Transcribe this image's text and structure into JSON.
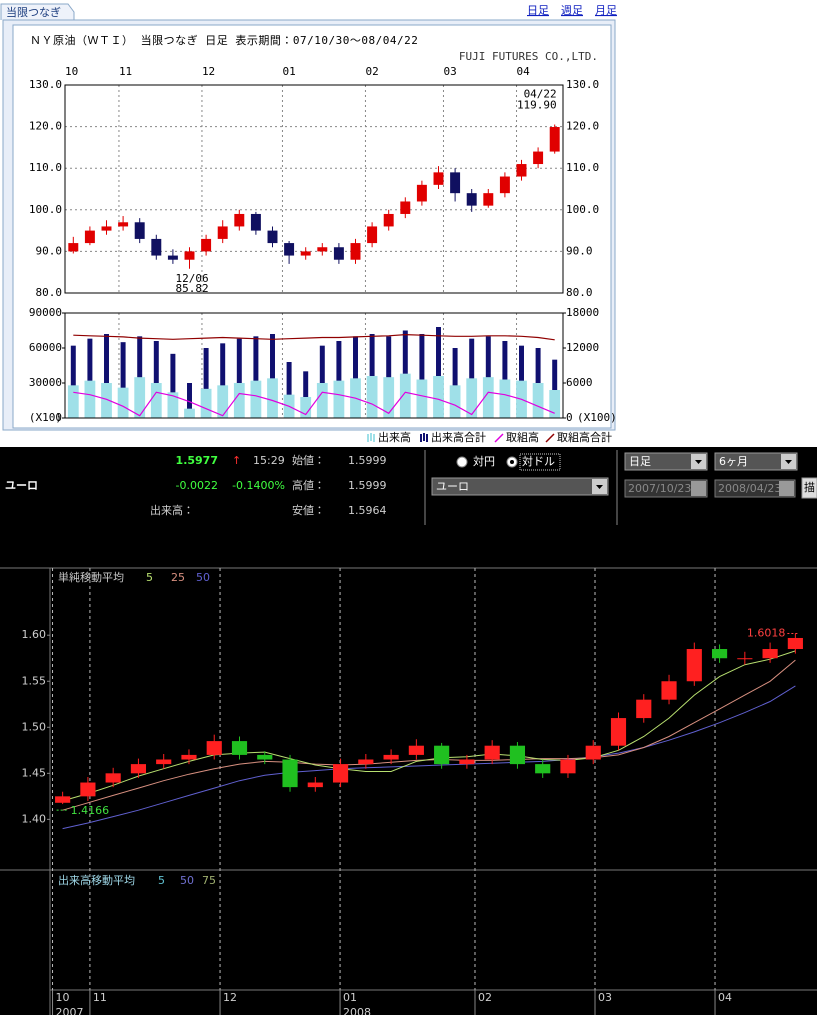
{
  "ui": {
    "tab": "当限つなぎ",
    "links": [
      "日足",
      "週足",
      "月足"
    ],
    "quote": {
      "name": "ユーロ",
      "price": "1.5977",
      "arrow": "↑",
      "time": "15:29",
      "change": "-0.0022",
      "change_pct": "-0.1400%",
      "volume_label": "出来高：",
      "open_label": "始値：",
      "open": "1.5999",
      "high_label": "高値：",
      "high": "1.5999",
      "low_label": "安値：",
      "low": "1.5964"
    },
    "controls": {
      "radios": [
        "対円",
        "対ドル"
      ],
      "currency": "ユーロ",
      "period": "日足",
      "range": "6ヶ月",
      "from": "2007/10/23",
      "to": "2008/04/23",
      "button": "描"
    }
  },
  "chart_data": [
    {
      "type": "candlestick",
      "title": "ＮＹ原油（ＷＴＩ） 当限つなぎ 日足 表示期間：07/10/30〜08/04/22",
      "subtitle": "FUJI FUTURES CO.,LTD.",
      "up_color": "#e00000",
      "down_color": "#101060",
      "xlim": [
        -0.5,
        29.5
      ],
      "xticks": [
        {
          "value": -0.5,
          "label": "10"
        },
        {
          "value": 2.75,
          "label": "11"
        },
        {
          "value": 7.75,
          "label": "12"
        },
        {
          "value": 12.6,
          "label": "01"
        },
        {
          "value": 17.6,
          "label": "02"
        },
        {
          "value": 22.3,
          "label": "03"
        },
        {
          "value": 26.7,
          "label": "04"
        }
      ],
      "ylim": [
        80,
        130
      ],
      "yticks": [
        {
          "value": 80,
          "label": "80.0"
        },
        {
          "value": 90,
          "label": "90.0"
        },
        {
          "value": 100,
          "label": "100.0"
        },
        {
          "value": 110,
          "label": "110.0"
        },
        {
          "value": 120,
          "label": "120.0"
        },
        {
          "value": 130,
          "label": "130.0"
        }
      ],
      "grid": true,
      "open": [
        90,
        92,
        95,
        96,
        97,
        93,
        89,
        88,
        90,
        93,
        96,
        99,
        95,
        92,
        89,
        90,
        91,
        88,
        92,
        96,
        99,
        102,
        106,
        109,
        104,
        101,
        104,
        108,
        111,
        114
      ],
      "high": [
        93.5,
        96,
        97.5,
        98.5,
        98,
        94,
        90.5,
        91,
        94,
        97.5,
        100,
        99.5,
        96,
        92.5,
        91,
        92,
        92,
        93,
        97,
        100,
        103,
        107,
        110.5,
        110,
        105,
        105,
        109,
        112,
        115,
        120.5
      ],
      "low": [
        89.5,
        91.5,
        94,
        95,
        92,
        88,
        87,
        85.82,
        89,
        92,
        95,
        94,
        91,
        87,
        88,
        89,
        87,
        87,
        91,
        95,
        98,
        101,
        105,
        102,
        99.5,
        100.5,
        103,
        107,
        110,
        113.5
      ],
      "close": [
        92,
        95,
        96,
        97,
        93,
        89,
        88,
        90,
        93,
        96,
        99,
        95,
        92,
        89,
        90,
        91,
        88,
        92,
        96,
        99,
        102,
        106,
        109,
        104,
        101,
        104,
        108,
        111,
        114,
        119.9
      ],
      "annotations": [
        {
          "date": "04/22",
          "price": "119.90"
        },
        {
          "date": "12/06",
          "price": "85.82"
        }
      ]
    },
    {
      "type": "volume",
      "xlim": [
        -0.5,
        29.5
      ],
      "xticks": [
        {
          "value": 2.75,
          "label": "11"
        },
        {
          "value": 7.75,
          "label": "12"
        },
        {
          "value": 12.6,
          "label": "01"
        },
        {
          "value": 17.6,
          "label": "02"
        },
        {
          "value": 22.3,
          "label": "03"
        },
        {
          "value": 26.7,
          "label": "04"
        }
      ],
      "ylim": [
        0,
        90000
      ],
      "yticks": [
        0,
        30000,
        60000,
        90000
      ],
      "y_unit": "(X10)",
      "y2lim": [
        0,
        18000
      ],
      "y2ticks": [
        0,
        6000,
        12000,
        18000
      ],
      "y2_unit": "(X100)",
      "series": [
        {
          "name": "出来高合計",
          "kind": "bar",
          "color": "#101070",
          "values": [
            62000,
            68000,
            72000,
            65000,
            70000,
            66000,
            55000,
            30000,
            60000,
            64000,
            68000,
            70000,
            72000,
            48000,
            40000,
            62000,
            66000,
            70000,
            72000,
            70000,
            75000,
            72000,
            78000,
            60000,
            68000,
            70000,
            66000,
            62000,
            60000,
            50000
          ]
        },
        {
          "name": "出来高",
          "kind": "bar",
          "color": "#9fe0e8",
          "values": [
            28000,
            32000,
            30000,
            26000,
            35000,
            30000,
            22000,
            8000,
            25000,
            28000,
            30000,
            32000,
            34000,
            20000,
            18000,
            30000,
            32000,
            34000,
            36000,
            35000,
            38000,
            33000,
            36000,
            28000,
            34000,
            35000,
            33000,
            32000,
            30000,
            24000
          ]
        },
        {
          "name": "取組高",
          "kind": "line",
          "color": "#e000e0",
          "values": [
            22000,
            20000,
            16000,
            10000,
            2000,
            22000,
            19000,
            14000,
            8000,
            2000,
            21000,
            19000,
            15000,
            10000,
            3000,
            22000,
            20000,
            17000,
            12000,
            4000,
            22000,
            19000,
            16000,
            11000,
            3000,
            22000,
            20000,
            16000,
            10000,
            4000
          ]
        },
        {
          "name": "取組高合計",
          "kind": "line",
          "axis": "y2",
          "color": "#900000",
          "values": [
            14200,
            14100,
            14000,
            13900,
            13700,
            13600,
            13500,
            13600,
            13700,
            13800,
            13700,
            13600,
            13500,
            13600,
            13700,
            13800,
            13800,
            13900,
            14000,
            14100,
            14300,
            14200,
            14100,
            14000,
            14000,
            14100,
            14100,
            14000,
            13800,
            13400
          ]
        }
      ],
      "legend": "bottom-right"
    },
    {
      "type": "candlestick",
      "up_color": "#ff2020",
      "down_color": "#20c020",
      "xlim": [
        -0.5,
        29.5
      ],
      "xticks": [
        {
          "value": -0.4,
          "label": "10"
        },
        {
          "value": 1.08,
          "label": "11"
        },
        {
          "value": 6.23,
          "label": "12"
        },
        {
          "value": 10.98,
          "label": "01"
        },
        {
          "value": 16.32,
          "label": "02"
        },
        {
          "value": 21.07,
          "label": "03"
        },
        {
          "value": 25.82,
          "label": "04"
        }
      ],
      "years": [
        {
          "value": -0.4,
          "label": "2007"
        },
        {
          "value": 10.98,
          "label": "2008"
        }
      ],
      "ylim": [
        1.345,
        1.673
      ],
      "yticks": [
        {
          "value": 1.4,
          "label": "1.40"
        },
        1.45,
        {
          "value": 1.5,
          "label": "1.50"
        },
        1.55,
        {
          "value": 1.6,
          "label": "1.60"
        }
      ],
      "open": [
        1.418,
        1.425,
        1.44,
        1.45,
        1.46,
        1.465,
        1.47,
        1.485,
        1.47,
        1.465,
        1.435,
        1.44,
        1.46,
        1.465,
        1.47,
        1.48,
        1.46,
        1.465,
        1.48,
        1.46,
        1.45,
        1.465,
        1.48,
        1.51,
        1.53,
        1.55,
        1.585,
        1.575,
        1.575,
        1.585
      ],
      "high": [
        1.43,
        1.446,
        1.456,
        1.466,
        1.471,
        1.476,
        1.492,
        1.49,
        1.474,
        1.47,
        1.446,
        1.466,
        1.471,
        1.476,
        1.487,
        1.483,
        1.47,
        1.486,
        1.484,
        1.465,
        1.47,
        1.486,
        1.516,
        1.536,
        1.557,
        1.592,
        1.59,
        1.582,
        1.592,
        1.6018
      ],
      "low": [
        1.4166,
        1.42,
        1.435,
        1.445,
        1.455,
        1.46,
        1.465,
        1.465,
        1.46,
        1.43,
        1.43,
        1.435,
        1.455,
        1.46,
        1.465,
        1.455,
        1.455,
        1.46,
        1.455,
        1.445,
        1.445,
        1.46,
        1.475,
        1.505,
        1.525,
        1.545,
        1.57,
        1.568,
        1.57,
        1.58
      ],
      "close": [
        1.425,
        1.44,
        1.45,
        1.46,
        1.465,
        1.47,
        1.485,
        1.47,
        1.465,
        1.435,
        1.44,
        1.46,
        1.465,
        1.47,
        1.48,
        1.46,
        1.465,
        1.48,
        1.46,
        1.45,
        1.465,
        1.48,
        1.51,
        1.53,
        1.55,
        1.585,
        1.575,
        1.575,
        1.585,
        1.597
      ],
      "annotations": [
        {
          "price": "1.6018"
        },
        {
          "price": "1.4166"
        }
      ],
      "legend_title": "単純移動平均",
      "series": [
        {
          "name": "5",
          "color": "#b8e070",
          "values": [
            1.42,
            1.428,
            1.437,
            1.447,
            1.455,
            1.463,
            1.47,
            1.472,
            1.473,
            1.466,
            1.459,
            1.455,
            1.452,
            1.452,
            1.463,
            1.467,
            1.468,
            1.471,
            1.469,
            1.465,
            1.464,
            1.467,
            1.475,
            1.49,
            1.51,
            1.535,
            1.555,
            1.568,
            1.574,
            1.583
          ]
        },
        {
          "name": "25",
          "color": "#d89080",
          "values": [
            1.41,
            1.418,
            1.426,
            1.434,
            1.442,
            1.449,
            1.455,
            1.46,
            1.463,
            1.462,
            1.46,
            1.459,
            1.46,
            1.462,
            1.464,
            1.465,
            1.464,
            1.464,
            1.465,
            1.466,
            1.466,
            1.467,
            1.47,
            1.478,
            1.49,
            1.505,
            1.52,
            1.535,
            1.55,
            1.573
          ]
        },
        {
          "name": "50",
          "color": "#6060d0",
          "values": [
            1.39,
            1.396,
            1.403,
            1.41,
            1.418,
            1.426,
            1.434,
            1.442,
            1.448,
            1.451,
            1.453,
            1.455,
            1.456,
            1.457,
            1.458,
            1.459,
            1.46,
            1.461,
            1.462,
            1.463,
            1.465,
            1.468,
            1.472,
            1.478,
            1.486,
            1.495,
            1.505,
            1.516,
            1.528,
            1.545
          ]
        }
      ],
      "volume_legend_title": "出来高移動平均",
      "volume_legend": [
        {
          "name": "5",
          "color": "#60c0d0"
        },
        {
          "name": "50",
          "color": "#7070d0"
        },
        {
          "name": "75",
          "color": "#a0b070"
        }
      ]
    }
  ]
}
